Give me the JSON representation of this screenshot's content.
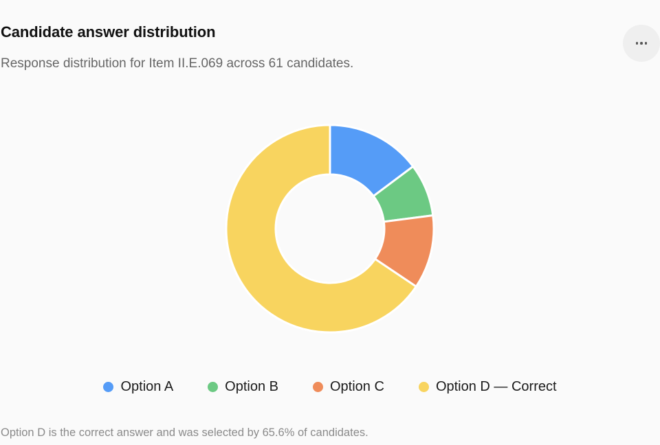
{
  "header": {
    "title": "Candidate answer distribution",
    "subtitle": "Response distribution for Item II.E.069 across 61 candidates.",
    "more_icon": "more-horizontal-icon"
  },
  "chart_data": {
    "type": "pie",
    "donut": true,
    "categories": [
      "Option A",
      "Option B",
      "Option C",
      "Option D — Correct"
    ],
    "values": [
      9,
      5,
      7,
      40
    ],
    "colors": [
      "#559cf7",
      "#6cc983",
      "#ef8c5a",
      "#f8d45f"
    ],
    "legend_position": "bottom"
  },
  "footnote": "Option D is the correct answer and was selected by 65.6% of candidates."
}
